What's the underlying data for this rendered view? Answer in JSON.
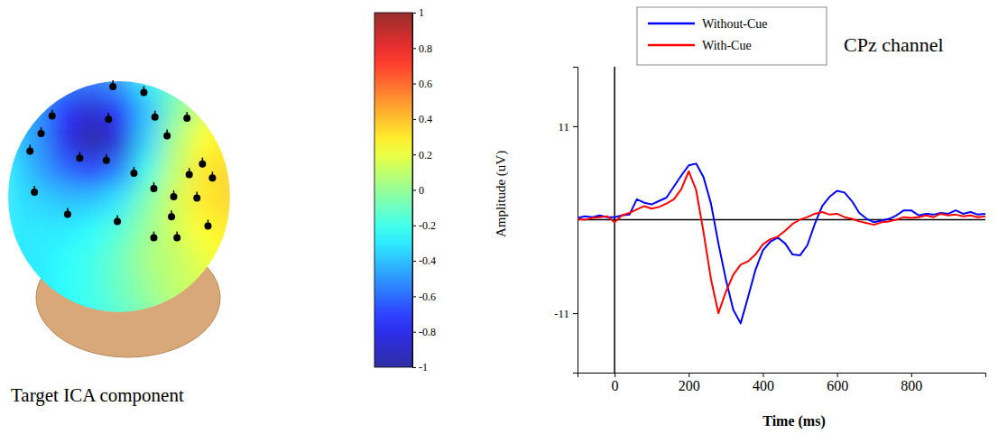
{
  "chart_data": [
    {
      "type": "topography",
      "title": "Target ICA component",
      "cells": [
        [
          -0.35,
          -0.45,
          -0.55,
          -0.6,
          -0.5,
          -0.3,
          -0.1,
          0.05,
          0.15
        ],
        [
          -0.35,
          -0.5,
          -0.75,
          -0.9,
          -0.75,
          -0.4,
          -0.05,
          0.15,
          0.25
        ],
        [
          -0.35,
          -0.5,
          -0.8,
          -1.0,
          -0.85,
          -0.35,
          0.05,
          0.25,
          0.3
        ],
        [
          -0.3,
          -0.45,
          -0.6,
          -0.7,
          -0.55,
          -0.2,
          0.1,
          0.3,
          0.35
        ],
        [
          -0.3,
          -0.35,
          -0.4,
          -0.4,
          -0.3,
          -0.05,
          0.15,
          0.3,
          0.35
        ],
        [
          -0.3,
          -0.3,
          -0.3,
          -0.25,
          -0.15,
          0.0,
          0.15,
          0.25,
          0.3
        ],
        [
          -0.3,
          -0.3,
          -0.25,
          -0.2,
          -0.1,
          0.05,
          0.1,
          0.2,
          0.25
        ],
        [
          -0.3,
          -0.3,
          -0.25,
          -0.2,
          -0.1,
          0.0,
          0.1,
          0.15,
          0.2
        ],
        [
          -0.3,
          -0.3,
          -0.25,
          -0.2,
          -0.15,
          -0.05,
          0.05,
          0.1,
          0.15
        ]
      ],
      "electrodes": {
        "x": [
          -0.06,
          0.22,
          -0.61,
          -0.1,
          0.32,
          0.61,
          -0.71,
          -0.36,
          -0.12,
          0.13,
          0.43,
          0.75,
          -0.81,
          0.63,
          0.84,
          -0.77,
          0.31,
          0.49,
          0.7,
          -0.47,
          -0.02,
          0.47,
          0.8,
          0.31,
          0.52
        ],
        "y": [
          0.97,
          0.92,
          0.72,
          0.69,
          0.71,
          0.7,
          0.57,
          0.36,
          0.34,
          0.23,
          0.55,
          0.31,
          0.42,
          0.22,
          0.19,
          0.07,
          0.1,
          0.03,
          0.02,
          -0.12,
          -0.18,
          -0.14,
          -0.22,
          -0.32,
          -0.32
        ]
      },
      "colorbar": {
        "range": [
          -1,
          1
        ],
        "ticks": [
          -1,
          -0.8,
          -0.6,
          -0.4,
          -0.2,
          0,
          0.2,
          0.4,
          0.6,
          0.8,
          1
        ]
      }
    },
    {
      "type": "line",
      "title": "CPz channel",
      "x_label": "Time (ms)",
      "y_label": "Amplitude (uV)",
      "x": [
        -100,
        -80,
        -60,
        -40,
        -20,
        0,
        20,
        40,
        60,
        80,
        100,
        120,
        140,
        160,
        180,
        200,
        220,
        240,
        260,
        280,
        300,
        320,
        340,
        360,
        380,
        400,
        420,
        440,
        460,
        480,
        500,
        520,
        540,
        560,
        580,
        600,
        620,
        640,
        660,
        680,
        700,
        720,
        740,
        760,
        780,
        800,
        820,
        840,
        860,
        880,
        900,
        920,
        940,
        960,
        980,
        1000
      ],
      "series": [
        {
          "name": "Without-Cue",
          "color": "#0000ff",
          "values": [
            0.2,
            0.4,
            0.3,
            0.5,
            0.3,
            0.3,
            0.5,
            0.6,
            2.4,
            2.0,
            1.8,
            2.2,
            2.6,
            3.9,
            5.2,
            6.4,
            6.6,
            5.0,
            1.9,
            -2.8,
            -7.0,
            -10.6,
            -12.2,
            -9.1,
            -5.9,
            -3.6,
            -2.6,
            -2.1,
            -2.8,
            -4.1,
            -4.2,
            -3.0,
            -0.5,
            1.6,
            2.7,
            3.4,
            3.2,
            2.2,
            0.8,
            0.1,
            -0.3,
            -0.1,
            0.1,
            0.5,
            1.1,
            1.1,
            0.5,
            0.7,
            0.6,
            0.8,
            0.7,
            1.1,
            0.7,
            0.9,
            0.6,
            0.7
          ]
        },
        {
          "name": "With-Cue",
          "color": "#ff0000",
          "values": [
            0.1,
            0.0,
            0.2,
            0.3,
            0.4,
            -0.3,
            0.5,
            0.8,
            1.2,
            1.6,
            1.3,
            1.5,
            1.9,
            2.4,
            3.6,
            5.7,
            3.5,
            -1.5,
            -7.0,
            -11.0,
            -8.5,
            -6.5,
            -5.3,
            -4.9,
            -4.1,
            -2.9,
            -2.3,
            -2.0,
            -1.3,
            -0.5,
            0.0,
            0.3,
            0.7,
            0.9,
            0.6,
            0.7,
            0.3,
            0.1,
            -0.2,
            -0.4,
            -0.6,
            -0.3,
            -0.2,
            0.0,
            0.3,
            0.2,
            0.3,
            0.5,
            0.3,
            0.7,
            0.5,
            0.6,
            0.4,
            0.5,
            0.3,
            0.4
          ]
        }
      ],
      "xlim": [
        -100,
        1000
      ],
      "ylim": [
        -18,
        18
      ],
      "xticks": [
        0,
        200,
        400,
        600,
        800
      ],
      "yticks": [
        -11,
        11
      ],
      "legend": "upper left"
    }
  ]
}
